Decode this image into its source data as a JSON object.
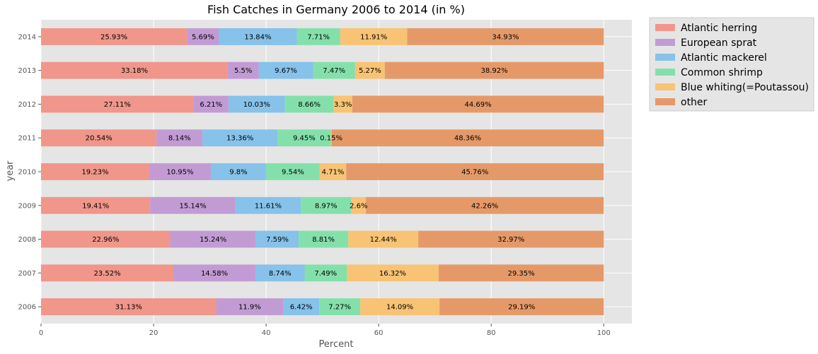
{
  "chart_data": {
    "type": "bar",
    "orientation": "horizontal",
    "stacked": true,
    "title": "Fish Catches in Germany 2006 to 2014 (in %)",
    "xlabel": "Percent",
    "ylabel": "year",
    "xlim": [
      0,
      105
    ],
    "xticks": [
      0,
      20,
      40,
      60,
      80,
      100
    ],
    "grid": true,
    "legend_position": "outside-top-right",
    "categories": [
      "2006",
      "2007",
      "2008",
      "2009",
      "2010",
      "2011",
      "2012",
      "2013",
      "2014"
    ],
    "series": [
      {
        "name": "Atlantic herring",
        "color": "#f1968a",
        "values": [
          31.13,
          23.52,
          22.96,
          19.41,
          19.23,
          20.54,
          27.11,
          33.18,
          25.93
        ]
      },
      {
        "name": "European sprat",
        "color": "#c29bd4",
        "values": [
          11.9,
          14.58,
          15.24,
          15.14,
          10.95,
          8.14,
          6.21,
          5.5,
          5.69
        ]
      },
      {
        "name": "Atlantic mackerel",
        "color": "#86c2ea",
        "values": [
          6.42,
          8.74,
          7.59,
          11.61,
          9.8,
          13.36,
          10.03,
          9.67,
          13.84
        ]
      },
      {
        "name": "Common shrimp",
        "color": "#84e0ab",
        "values": [
          7.27,
          7.49,
          8.81,
          8.97,
          9.54,
          9.45,
          8.66,
          7.47,
          7.71
        ]
      },
      {
        "name": "Blue whiting(=Poutassou)",
        "color": "#f8c374",
        "values": [
          14.09,
          16.32,
          12.44,
          2.6,
          4.71,
          0.15,
          3.3,
          5.27,
          11.91
        ]
      },
      {
        "name": "other",
        "color": "#e69968",
        "values": [
          29.19,
          29.35,
          32.97,
          42.26,
          45.76,
          48.36,
          44.69,
          38.92,
          34.93
        ]
      }
    ]
  }
}
